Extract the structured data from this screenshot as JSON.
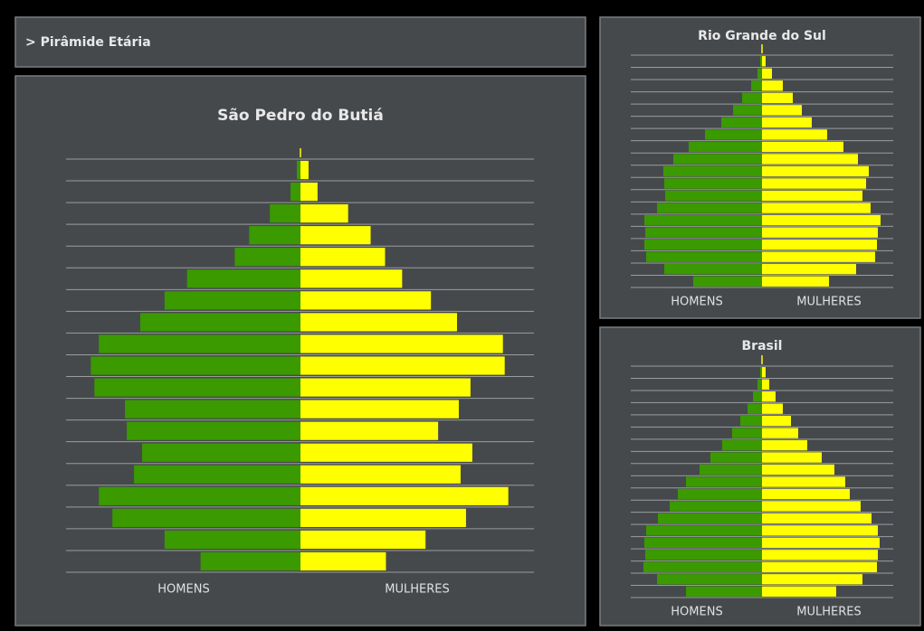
{
  "header": {
    "title": "> Pirâmide Etária"
  },
  "chart_data": [
    {
      "type": "pyramid",
      "title": "São Pedro do Butiá",
      "xlim": [
        -260,
        260
      ],
      "grid": true,
      "series": [
        {
          "name": "HOMENS",
          "color": "#3a9a00",
          "values": [
            4,
            11,
            34,
            57,
            73,
            126,
            151,
            178,
            224,
            233,
            229,
            195,
            193,
            176,
            185,
            224,
            209,
            151,
            111
          ]
        },
        {
          "name": "MULHERES",
          "color": "#ffff00",
          "values": [
            9,
            19,
            53,
            78,
            94,
            113,
            145,
            174,
            225,
            227,
            189,
            176,
            153,
            191,
            178,
            231,
            184,
            139,
            95
          ]
        }
      ]
    },
    {
      "type": "pyramid",
      "title": "Rio Grande do Sul",
      "xlim": [
        -145,
        145
      ],
      "grid": true,
      "series": [
        {
          "name": "HOMENS",
          "color": "#3a9a00",
          "values": [
            2,
            5,
            12,
            22,
            32,
            45,
            63,
            81,
            98,
            109,
            108,
            107,
            116,
            130,
            129,
            130,
            128,
            108,
            76
          ]
        },
        {
          "name": "MULHERES",
          "color": "#ffff00",
          "values": [
            4,
            11,
            23,
            34,
            44,
            55,
            72,
            90,
            106,
            118,
            115,
            111,
            120,
            131,
            128,
            127,
            125,
            104,
            74
          ]
        }
      ]
    },
    {
      "type": "pyramid",
      "title": "Brasil",
      "xlim": [
        -145,
        145
      ],
      "grid": true,
      "series": [
        {
          "name": "HOMENS",
          "color": "#3a9a00",
          "values": [
            2,
            5,
            10,
            16,
            24,
            33,
            44,
            57,
            69,
            84,
            93,
            102,
            115,
            128,
            130,
            129,
            131,
            116,
            84
          ]
        },
        {
          "name": "MULHERES",
          "color": "#ffff00",
          "values": [
            4,
            8,
            15,
            23,
            32,
            40,
            50,
            66,
            80,
            92,
            97,
            109,
            121,
            128,
            130,
            128,
            127,
            111,
            82
          ]
        }
      ]
    }
  ]
}
